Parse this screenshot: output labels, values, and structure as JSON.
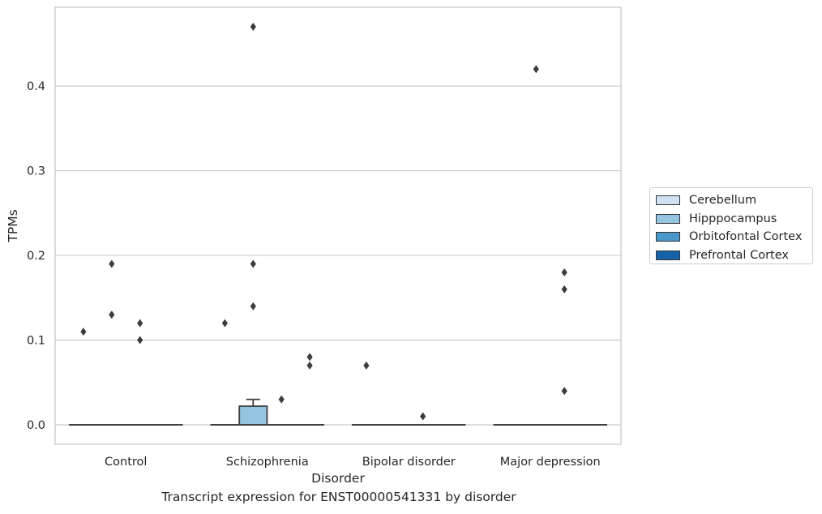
{
  "chart_data": {
    "type": "box",
    "caption": "Transcript expression for ENST00000541331 by disorder",
    "xlabel": "Disorder",
    "ylabel": "TPMs",
    "ylim": [
      -0.023,
      0.493
    ],
    "yticks": [
      "0.0",
      "0.1",
      "0.2",
      "0.3",
      "0.4"
    ],
    "grid": true,
    "legend_position": "right",
    "categories": [
      "Control",
      "Schizophrenia",
      "Bipolar disorder",
      "Major depression"
    ],
    "series": [
      {
        "name": "Cerebellum",
        "color": "#d0e1f2",
        "boxes": [
          {
            "q1": 0,
            "median": 0,
            "q3": 0,
            "whisker_low": 0,
            "whisker_high": 0,
            "outliers": [
              0.11
            ]
          },
          {
            "q1": 0,
            "median": 0,
            "q3": 0,
            "whisker_low": 0,
            "whisker_high": 0,
            "outliers": [
              0.12
            ]
          },
          {
            "q1": 0,
            "median": 0,
            "q3": 0,
            "whisker_low": 0,
            "whisker_high": 0,
            "outliers": [
              0.07
            ]
          },
          {
            "q1": 0,
            "median": 0,
            "q3": 0,
            "whisker_low": 0,
            "whisker_high": 0,
            "outliers": []
          }
        ]
      },
      {
        "name": "Hipppocampus",
        "color": "#94c4df",
        "boxes": [
          {
            "q1": 0,
            "median": 0,
            "q3": 0,
            "whisker_low": 0,
            "whisker_high": 0,
            "outliers": [
              0.13,
              0.19
            ]
          },
          {
            "q1": 0,
            "median": 0,
            "q3": 0.022,
            "whisker_low": 0,
            "whisker_high": 0.03,
            "outliers": [
              0.14,
              0.19,
              0.47
            ]
          },
          {
            "q1": 0,
            "median": 0,
            "q3": 0,
            "whisker_low": 0,
            "whisker_high": 0,
            "outliers": []
          },
          {
            "q1": 0,
            "median": 0,
            "q3": 0,
            "whisker_low": 0,
            "whisker_high": 0,
            "outliers": [
              0.42
            ]
          }
        ]
      },
      {
        "name": "Orbitofontal Cortex",
        "color": "#4a98c9",
        "boxes": [
          {
            "q1": 0,
            "median": 0,
            "q3": 0,
            "whisker_low": 0,
            "whisker_high": 0,
            "outliers": [
              0.1,
              0.12
            ]
          },
          {
            "q1": 0,
            "median": 0,
            "q3": 0,
            "whisker_low": 0,
            "whisker_high": 0,
            "outliers": [
              0.03
            ]
          },
          {
            "q1": 0,
            "median": 0,
            "q3": 0,
            "whisker_low": 0,
            "whisker_high": 0,
            "outliers": [
              0.01
            ]
          },
          {
            "q1": 0,
            "median": 0,
            "q3": 0,
            "whisker_low": 0,
            "whisker_high": 0,
            "outliers": [
              0.04,
              0.16,
              0.18
            ]
          }
        ]
      },
      {
        "name": "Prefrontal Cortex",
        "color": "#1764ab",
        "boxes": [
          {
            "q1": 0,
            "median": 0,
            "q3": 0,
            "whisker_low": 0,
            "whisker_high": 0,
            "outliers": []
          },
          {
            "q1": 0,
            "median": 0,
            "q3": 0,
            "whisker_low": 0,
            "whisker_high": 0,
            "outliers": [
              0.07,
              0.08
            ]
          },
          {
            "q1": 0,
            "median": 0,
            "q3": 0,
            "whisker_low": 0,
            "whisker_high": 0,
            "outliers": []
          },
          {
            "q1": 0,
            "median": 0,
            "q3": 0,
            "whisker_low": 0,
            "whisker_high": 0,
            "outliers": []
          }
        ]
      }
    ]
  }
}
